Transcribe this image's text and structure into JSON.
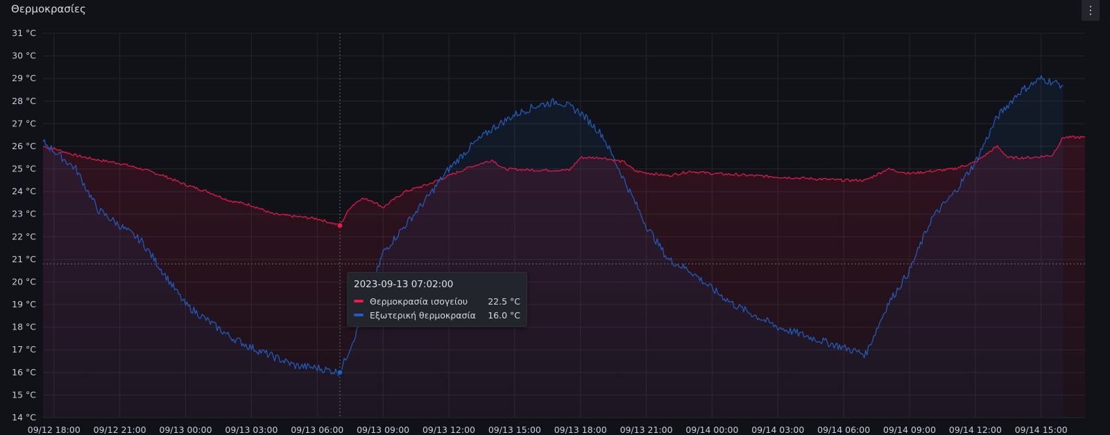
{
  "panel": {
    "title": "Θερμοκρασίες",
    "menu_icon": "⋮"
  },
  "colors": {
    "indoor": "#f2164d",
    "outdoor": "#1f60c4",
    "grid": "#24262c",
    "crosshair": "#6c6e74",
    "background": "#111217"
  },
  "tooltip": {
    "timestamp": "2023-09-13 07:02:00",
    "rows": [
      {
        "name": "Θερμοκρασία ισογείου",
        "value": "22.5 °C",
        "color": "#f2164d"
      },
      {
        "name": "Εξωτερική θερμοκρασία",
        "value": "16.0 °C",
        "color": "#1f60c4"
      }
    ]
  },
  "chart_data": {
    "type": "line",
    "fill": "area",
    "grid": true,
    "legend": "none",
    "ylim": [
      14,
      31
    ],
    "y_unit": "°C",
    "y_ticks": [
      14,
      15,
      16,
      17,
      18,
      19,
      20,
      21,
      22,
      23,
      24,
      25,
      26,
      27,
      28,
      29,
      30,
      31
    ],
    "y_tick_labels": [
      "14 °C",
      "15 °C",
      "16 °C",
      "17 °C",
      "18 °C",
      "19 °C",
      "20 °C",
      "21 °C",
      "22 °C",
      "23 °C",
      "24 °C",
      "25 °C",
      "26 °C",
      "27 °C",
      "28 °C",
      "29 °C",
      "30 °C",
      "31 °C"
    ],
    "x_range": [
      "2023-09-12 17:30",
      "2023-09-14 17:00"
    ],
    "x_ticks": [
      "2023-09-12 18:00",
      "2023-09-12 21:00",
      "2023-09-13 00:00",
      "2023-09-13 03:00",
      "2023-09-13 06:00",
      "2023-09-13 09:00",
      "2023-09-13 12:00",
      "2023-09-13 15:00",
      "2023-09-13 18:00",
      "2023-09-13 21:00",
      "2023-09-14 00:00",
      "2023-09-14 03:00",
      "2023-09-14 06:00",
      "2023-09-14 09:00",
      "2023-09-14 12:00",
      "2023-09-14 15:00"
    ],
    "x_tick_labels": [
      "09/12 18:00",
      "09/12 21:00",
      "09/13 00:00",
      "09/13 03:00",
      "09/13 06:00",
      "09/13 09:00",
      "09/13 12:00",
      "09/13 15:00",
      "09/13 18:00",
      "09/13 21:00",
      "09/14 00:00",
      "09/14 03:00",
      "09/14 06:00",
      "09/14 09:00",
      "09/14 12:00",
      "09/14 15:00"
    ],
    "cursor": {
      "x": "2023-09-13 07:02",
      "y": 20.8
    },
    "series": [
      {
        "name": "Θερμοκρασία ισογείου",
        "color": "#f2164d",
        "points": [
          [
            "2023-09-12 17:30",
            26.0
          ],
          [
            "2023-09-12 18:00",
            25.9
          ],
          [
            "2023-09-12 19:00",
            25.6
          ],
          [
            "2023-09-12 20:00",
            25.4
          ],
          [
            "2023-09-12 21:00",
            25.25
          ],
          [
            "2023-09-12 22:00",
            25.0
          ],
          [
            "2023-09-12 23:00",
            24.7
          ],
          [
            "2023-09-13 00:00",
            24.3
          ],
          [
            "2023-09-13 01:00",
            24.0
          ],
          [
            "2023-09-13 02:00",
            23.6
          ],
          [
            "2023-09-13 03:00",
            23.4
          ],
          [
            "2023-09-13 04:00",
            23.0
          ],
          [
            "2023-09-13 05:00",
            22.9
          ],
          [
            "2023-09-13 06:00",
            22.8
          ],
          [
            "2023-09-13 07:02",
            22.5
          ],
          [
            "2023-09-13 07:30",
            23.3
          ],
          [
            "2023-09-13 08:00",
            23.7
          ],
          [
            "2023-09-13 08:30",
            23.6
          ],
          [
            "2023-09-13 09:00",
            23.3
          ],
          [
            "2023-09-13 10:00",
            24.0
          ],
          [
            "2023-09-13 11:00",
            24.3
          ],
          [
            "2023-09-13 12:00",
            24.7
          ],
          [
            "2023-09-13 13:00",
            25.1
          ],
          [
            "2023-09-13 14:00",
            25.4
          ],
          [
            "2023-09-13 14:30",
            25.0
          ],
          [
            "2023-09-13 16:00",
            24.95
          ],
          [
            "2023-09-13 17:30",
            24.95
          ],
          [
            "2023-09-13 18:00",
            25.5
          ],
          [
            "2023-09-13 19:00",
            25.5
          ],
          [
            "2023-09-13 20:00",
            25.3
          ],
          [
            "2023-09-13 20:30",
            24.9
          ],
          [
            "2023-09-13 22:00",
            24.7
          ],
          [
            "2023-09-13 23:00",
            24.9
          ],
          [
            "2023-09-14 00:00",
            24.8
          ],
          [
            "2023-09-14 02:00",
            24.7
          ],
          [
            "2023-09-14 04:00",
            24.6
          ],
          [
            "2023-09-14 06:00",
            24.5
          ],
          [
            "2023-09-14 07:00",
            24.5
          ],
          [
            "2023-09-14 08:00",
            25.0
          ],
          [
            "2023-09-14 09:00",
            24.8
          ],
          [
            "2023-09-14 10:00",
            24.9
          ],
          [
            "2023-09-14 11:00",
            25.0
          ],
          [
            "2023-09-14 12:00",
            25.3
          ],
          [
            "2023-09-14 13:00",
            26.0
          ],
          [
            "2023-09-14 13:30",
            25.5
          ],
          [
            "2023-09-14 14:30",
            25.5
          ],
          [
            "2023-09-14 15:30",
            25.6
          ],
          [
            "2023-09-14 16:00",
            26.4
          ],
          [
            "2023-09-14 17:00",
            26.4
          ]
        ]
      },
      {
        "name": "Εξωτερική θερμοκρασία",
        "color": "#1f60c4",
        "points": [
          [
            "2023-09-12 17:30",
            26.2
          ],
          [
            "2023-09-12 18:00",
            25.8
          ],
          [
            "2023-09-12 19:00",
            25.0
          ],
          [
            "2023-09-12 20:00",
            23.2
          ],
          [
            "2023-09-12 21:00",
            22.5
          ],
          [
            "2023-09-12 22:00",
            21.8
          ],
          [
            "2023-09-12 23:00",
            20.4
          ],
          [
            "2023-09-13 00:00",
            19.0
          ],
          [
            "2023-09-13 01:00",
            18.3
          ],
          [
            "2023-09-13 02:00",
            17.6
          ],
          [
            "2023-09-13 03:00",
            17.1
          ],
          [
            "2023-09-13 04:00",
            16.7
          ],
          [
            "2023-09-13 05:00",
            16.3
          ],
          [
            "2023-09-13 06:00",
            16.2
          ],
          [
            "2023-09-13 07:02",
            16.0
          ],
          [
            "2023-09-13 08:00",
            18.3
          ],
          [
            "2023-09-13 09:00",
            21.3
          ],
          [
            "2023-09-13 10:00",
            22.5
          ],
          [
            "2023-09-13 11:00",
            23.7
          ],
          [
            "2023-09-13 12:00",
            25.0
          ],
          [
            "2023-09-13 13:00",
            26.0
          ],
          [
            "2023-09-13 14:00",
            26.8
          ],
          [
            "2023-09-13 15:00",
            27.4
          ],
          [
            "2023-09-13 16:00",
            27.8
          ],
          [
            "2023-09-13 17:00",
            28.0
          ],
          [
            "2023-09-13 18:00",
            27.5
          ],
          [
            "2023-09-13 19:00",
            26.5
          ],
          [
            "2023-09-13 20:00",
            24.5
          ],
          [
            "2023-09-13 21:00",
            22.5
          ],
          [
            "2023-09-13 22:00",
            21.0
          ],
          [
            "2023-09-13 23:00",
            20.5
          ],
          [
            "2023-09-14 00:00",
            19.7
          ],
          [
            "2023-09-14 01:00",
            19.0
          ],
          [
            "2023-09-14 02:00",
            18.5
          ],
          [
            "2023-09-14 03:00",
            18.0
          ],
          [
            "2023-09-14 04:00",
            17.7
          ],
          [
            "2023-09-14 05:00",
            17.4
          ],
          [
            "2023-09-14 06:00",
            17.1
          ],
          [
            "2023-09-14 07:00",
            16.8
          ],
          [
            "2023-09-14 08:00",
            19.0
          ],
          [
            "2023-09-14 09:00",
            20.5
          ],
          [
            "2023-09-14 10:00",
            22.8
          ],
          [
            "2023-09-14 11:00",
            23.9
          ],
          [
            "2023-09-14 12:00",
            25.3
          ],
          [
            "2023-09-14 13:00",
            27.3
          ],
          [
            "2023-09-14 14:00",
            28.4
          ],
          [
            "2023-09-14 15:00",
            29.0
          ],
          [
            "2023-09-14 16:00",
            28.7
          ]
        ]
      }
    ]
  }
}
